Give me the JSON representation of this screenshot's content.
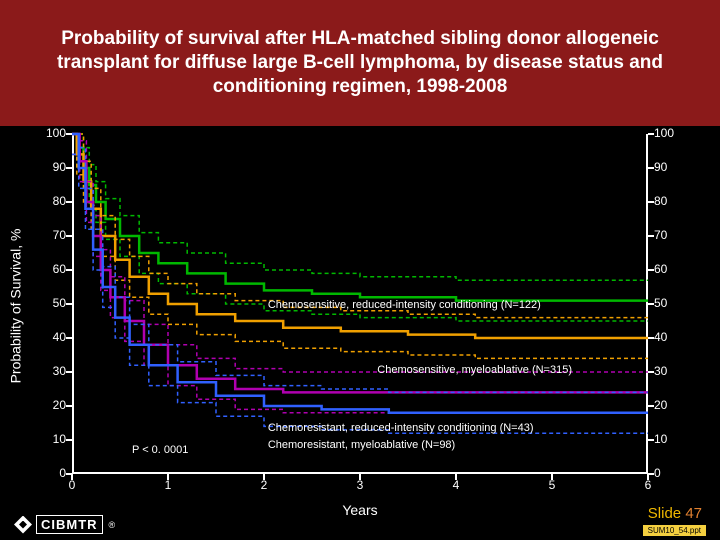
{
  "title": "Probability of survival after HLA-matched sibling donor allogeneic transplant for diffuse large B-cell lymphoma, by disease status and conditioning regimen, 1998-2008",
  "y_axis_label": "Probability of Survival, %",
  "x_axis_label": "Years",
  "p_value": "P < 0. 0001",
  "chart": {
    "type": "step-line",
    "background_color": "#000000",
    "grid_color": "none",
    "axis_color": "#ffffff",
    "tick_fontsize": 12,
    "label_fontsize": 14,
    "ylim": [
      0,
      100
    ],
    "ytick_step": 10,
    "xlim": [
      0,
      6
    ],
    "xtick_step": 1,
    "line_width": 2.5,
    "confidence_band_dash": "4,3",
    "confidence_band_width": 1.5,
    "series": [
      {
        "id": "chemo_sens_ric",
        "label": "Chemosensitive, reduced-intensity conditioning (N=122)",
        "color": "#00b800",
        "band_color": "#00b800",
        "label_pos": {
          "x_frac": 0.34,
          "y_pct": 49
        },
        "data": [
          [
            0,
            100
          ],
          [
            0.05,
            96
          ],
          [
            0.12,
            90
          ],
          [
            0.18,
            85
          ],
          [
            0.25,
            80
          ],
          [
            0.35,
            75
          ],
          [
            0.5,
            70
          ],
          [
            0.7,
            65
          ],
          [
            0.9,
            62
          ],
          [
            1.2,
            59
          ],
          [
            1.6,
            56
          ],
          [
            2.0,
            54
          ],
          [
            2.5,
            53
          ],
          [
            3.0,
            52
          ],
          [
            3.5,
            52
          ],
          [
            4.0,
            51
          ],
          [
            4.5,
            51
          ],
          [
            5.0,
            51
          ],
          [
            6.0,
            51
          ]
        ]
      },
      {
        "id": "chemo_sens_myelo",
        "label": "Chemosensitive, myeloablative (N=315)",
        "color": "#f0a000",
        "band_color": "#f0a000",
        "label_pos": {
          "x_frac": 0.53,
          "y_pct": 30
        },
        "data": [
          [
            0,
            100
          ],
          [
            0.05,
            94
          ],
          [
            0.12,
            86
          ],
          [
            0.2,
            78
          ],
          [
            0.3,
            70
          ],
          [
            0.45,
            63
          ],
          [
            0.6,
            58
          ],
          [
            0.8,
            53
          ],
          [
            1.0,
            50
          ],
          [
            1.3,
            47
          ],
          [
            1.7,
            45
          ],
          [
            2.2,
            43
          ],
          [
            2.8,
            42
          ],
          [
            3.5,
            41
          ],
          [
            4.2,
            40
          ],
          [
            5.0,
            40
          ],
          [
            6.0,
            40
          ]
        ]
      },
      {
        "id": "chemo_res_ric",
        "label": "Chemoresistant, reduced-intensity conditioning (N=43)",
        "color": "#b000b0",
        "band_color": "#b000b0",
        "label_pos": {
          "x_frac": 0.34,
          "y_pct": 13
        },
        "data": [
          [
            0,
            100
          ],
          [
            0.08,
            92
          ],
          [
            0.15,
            80
          ],
          [
            0.22,
            70
          ],
          [
            0.3,
            60
          ],
          [
            0.4,
            52
          ],
          [
            0.55,
            45
          ],
          [
            0.75,
            38
          ],
          [
            1.0,
            32
          ],
          [
            1.3,
            28
          ],
          [
            1.7,
            25
          ],
          [
            2.2,
            24
          ],
          [
            2.8,
            24
          ],
          [
            3.5,
            24
          ],
          [
            6.0,
            24
          ]
        ]
      },
      {
        "id": "chemo_res_myelo",
        "label": "Chemoresistant, myeloablative (N=98)",
        "color": "#3060ff",
        "band_color": "#3060ff",
        "label_pos": {
          "x_frac": 0.34,
          "y_pct": 8
        },
        "data": [
          [
            0,
            100
          ],
          [
            0.07,
            90
          ],
          [
            0.14,
            78
          ],
          [
            0.22,
            66
          ],
          [
            0.32,
            55
          ],
          [
            0.45,
            46
          ],
          [
            0.6,
            38
          ],
          [
            0.8,
            32
          ],
          [
            1.1,
            27
          ],
          [
            1.5,
            23
          ],
          [
            2.0,
            20
          ],
          [
            2.6,
            19
          ],
          [
            3.3,
            18
          ],
          [
            4.2,
            18
          ],
          [
            6.0,
            18
          ]
        ]
      }
    ]
  },
  "footer": {
    "logo_text": "CIBMTR",
    "slide_word": "Slide",
    "slide_number": "47",
    "file_tag": "SUM10_54.ppt"
  }
}
